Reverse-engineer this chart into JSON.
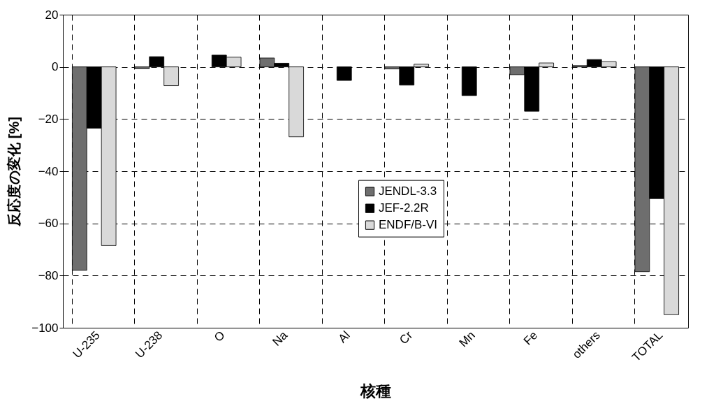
{
  "chart_data": {
    "type": "bar",
    "xlabel": "核種",
    "ylabel": "反応度の変化 [%]",
    "categories": [
      "U-235",
      "U-238",
      "O",
      "Na",
      "Al",
      "Cr",
      "Mn",
      "Fe",
      "others",
      "TOTAL"
    ],
    "series": [
      {
        "name": "JENDL-3.3",
        "color": "#6e6e6e",
        "values": [
          -78,
          -0.7,
          null,
          3.4,
          null,
          -0.8,
          null,
          -3,
          0.5,
          -78.5
        ]
      },
      {
        "name": "JEF-2.2R",
        "color": "#000000",
        "values": [
          -23.5,
          3.9,
          4.5,
          1.4,
          -5.2,
          -7,
          -11,
          -17,
          2.8,
          -50.5
        ]
      },
      {
        "name": "ENDF/B-VI",
        "color": "#d9d9d9",
        "values": [
          -68.5,
          -7.2,
          3.7,
          -26.8,
          null,
          1,
          null,
          1.5,
          2,
          -95
        ]
      }
    ],
    "ylim": [
      -100,
      20
    ],
    "yticks": [
      -100,
      -80,
      -60,
      -40,
      -20,
      0,
      20
    ],
    "grid": true,
    "legend": "center"
  }
}
